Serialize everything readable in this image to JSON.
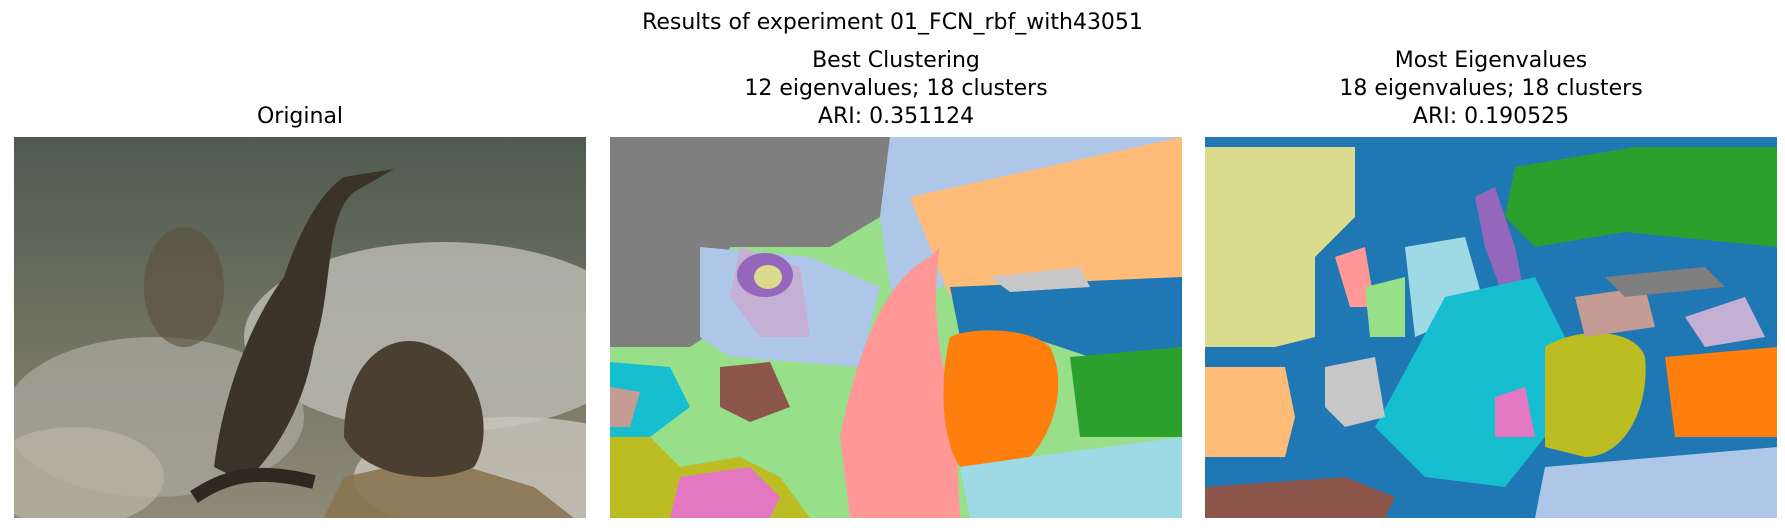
{
  "figure": {
    "suptitle": "Results of experiment 01_FCN_rbf_with43051"
  },
  "panels": [
    {
      "title": "Original"
    },
    {
      "title_lines": [
        "Best Clustering",
        "12 eigenvalues; 18 clusters",
        "ARI: 0.351124"
      ]
    },
    {
      "title_lines": [
        "Most Eigenvalues",
        "18 eigenvalues; 18 clusters",
        "ARI: 0.190525"
      ]
    }
  ],
  "palette": {
    "tab20_blue": "#1f77b4",
    "tab20_lightblue": "#aec7e8",
    "tab20_orange": "#ff7f0e",
    "tab20_lightorange": "#ffbb78",
    "tab20_green": "#2ca02c",
    "tab20_lightgreen": "#98df8a",
    "tab20_red": "#d62728",
    "tab20_pink": "#ff9896",
    "tab20_purple": "#9467bd",
    "tab20_lavender": "#c5b0d5",
    "tab20_brown": "#8c564b",
    "tab20_magenta": "#e377c2",
    "tab20_gray": "#7f7f7f",
    "tab20_lightgray": "#c7c7c7",
    "tab20_olive": "#bcbd22",
    "tab20_khaki": "#dbdb8d",
    "tab20_cyan": "#17becf",
    "tab20_lightcyan": "#9edae5"
  }
}
